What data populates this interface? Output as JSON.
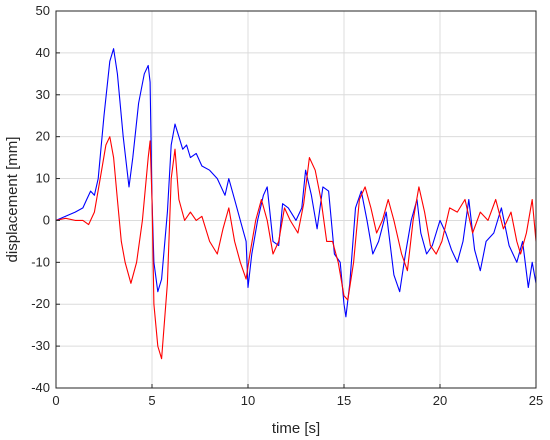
{
  "chart_data": {
    "type": "line",
    "xlabel": "time [s]",
    "ylabel": "displacement [mm]",
    "xlim": [
      0,
      25
    ],
    "ylim": [
      -40,
      50
    ],
    "xticks": [
      0,
      5,
      10,
      15,
      20,
      25
    ],
    "yticks": [
      -40,
      -30,
      -20,
      -10,
      0,
      10,
      20,
      30,
      40,
      50
    ],
    "grid": true,
    "series": [
      {
        "color": "#0000ff",
        "x": [
          0,
          0.5,
          1.0,
          1.4,
          1.6,
          1.8,
          2.0,
          2.2,
          2.5,
          2.8,
          3.0,
          3.2,
          3.5,
          3.8,
          4.0,
          4.3,
          4.6,
          4.8,
          4.9,
          5.0,
          5.1,
          5.3,
          5.5,
          5.8,
          6.0,
          6.2,
          6.4,
          6.6,
          6.8,
          7.0,
          7.3,
          7.6,
          8.0,
          8.4,
          8.8,
          9.0,
          9.3,
          9.6,
          9.9,
          10.0,
          10.2,
          10.5,
          10.8,
          11.0,
          11.3,
          11.6,
          11.8,
          12.1,
          12.5,
          12.8,
          13.0,
          13.3,
          13.6,
          13.9,
          14.2,
          14.5,
          14.8,
          15.0,
          15.1,
          15.3,
          15.6,
          15.9,
          16.2,
          16.5,
          16.8,
          17.2,
          17.6,
          17.9,
          18.2,
          18.5,
          18.8,
          19.0,
          19.3,
          19.6,
          20.0,
          20.3,
          20.6,
          20.9,
          21.2,
          21.5,
          21.8,
          22.1,
          22.4,
          22.8,
          23.2,
          23.6,
          24.0,
          24.3,
          24.6,
          24.8,
          25.0
        ],
        "y": [
          0,
          1,
          2,
          3,
          5,
          7,
          6,
          10,
          25,
          38,
          41,
          35,
          20,
          8,
          15,
          28,
          35,
          37,
          33,
          5,
          -10,
          -17,
          -14,
          2,
          18,
          23,
          20,
          17,
          18,
          15,
          16,
          13,
          12,
          10,
          6,
          10,
          5,
          0,
          -5,
          -16,
          -8,
          0,
          6,
          8,
          -5,
          -6,
          4,
          3,
          0,
          3,
          12,
          6,
          -2,
          8,
          7,
          -8,
          -10,
          -20,
          -23,
          -15,
          3,
          7,
          0,
          -8,
          -5,
          2,
          -13,
          -17,
          -8,
          0,
          5,
          -3,
          -8,
          -6,
          0,
          -3,
          -7,
          -10,
          -5,
          5,
          -7,
          -12,
          -5,
          -3,
          3,
          -6,
          -10,
          -5,
          -16,
          -10,
          -15
        ]
      },
      {
        "color": "#ff0000",
        "x": [
          0,
          0.5,
          1.0,
          1.4,
          1.7,
          2.0,
          2.3,
          2.6,
          2.8,
          3.0,
          3.2,
          3.4,
          3.6,
          3.9,
          4.2,
          4.5,
          4.8,
          4.9,
          5.0,
          5.1,
          5.3,
          5.5,
          5.8,
          6.0,
          6.2,
          6.4,
          6.7,
          7.0,
          7.3,
          7.6,
          8.0,
          8.4,
          8.7,
          9.0,
          9.3,
          9.6,
          9.9,
          10.1,
          10.4,
          10.7,
          11.0,
          11.3,
          11.6,
          11.9,
          12.2,
          12.6,
          12.9,
          13.2,
          13.5,
          13.8,
          14.1,
          14.4,
          14.7,
          15.0,
          15.2,
          15.5,
          15.8,
          16.1,
          16.4,
          16.7,
          17.0,
          17.3,
          17.6,
          18.0,
          18.3,
          18.6,
          18.9,
          19.2,
          19.5,
          19.8,
          20.1,
          20.5,
          20.9,
          21.3,
          21.7,
          22.1,
          22.5,
          22.9,
          23.3,
          23.7,
          24.0,
          24.2,
          24.5,
          24.8,
          25.0
        ],
        "y": [
          0,
          0.5,
          0,
          0,
          -1,
          2,
          10,
          18,
          20,
          15,
          5,
          -5,
          -10,
          -15,
          -10,
          0,
          15,
          19,
          5,
          -20,
          -30,
          -33,
          -15,
          10,
          17,
          5,
          0,
          2,
          0,
          1,
          -5,
          -8,
          -2,
          3,
          -5,
          -10,
          -14,
          -8,
          0,
          5,
          0,
          -8,
          -5,
          3,
          0,
          -3,
          4,
          15,
          12,
          5,
          -5,
          -5,
          -10,
          -18,
          -19,
          -10,
          5,
          8,
          3,
          -3,
          0,
          5,
          0,
          -8,
          -12,
          0,
          8,
          2,
          -6,
          -8,
          -5,
          3,
          2,
          5,
          -3,
          2,
          0,
          5,
          -2,
          2,
          -5,
          -8,
          -3,
          5,
          -5
        ]
      }
    ]
  }
}
